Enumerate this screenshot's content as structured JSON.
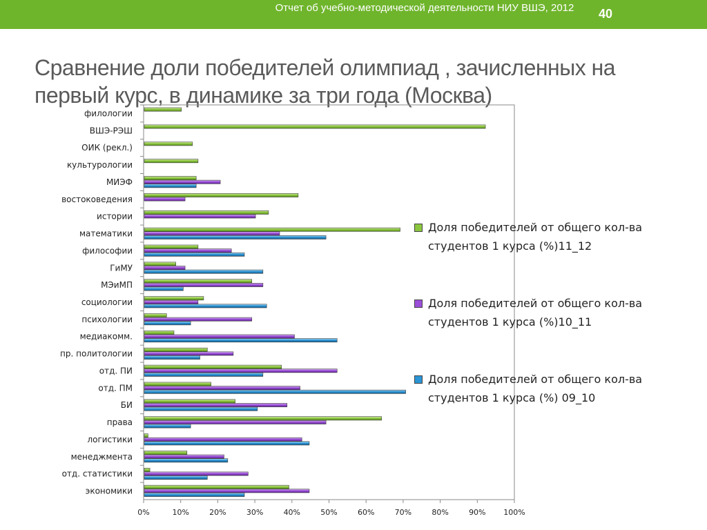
{
  "header": {
    "report_title": "Отчет об учебно-методической деятельности НИУ ВШЭ, 2012",
    "page_number": "40",
    "bar_color": "#6fb52c"
  },
  "slide": {
    "title": "Сравнение доли победителей олимпиад , зачисленных на первый курс, в динамике за три года (Москва)"
  },
  "chart_data": {
    "type": "bar",
    "orientation": "horizontal",
    "title": "",
    "xlabel": "",
    "ylabel": "",
    "xlim": [
      0,
      100
    ],
    "x_ticks": [
      "0%",
      "10%",
      "20%",
      "30%",
      "40%",
      "50%",
      "60%",
      "70%",
      "80%",
      "90%",
      "100%"
    ],
    "grid": false,
    "legend_position": "right",
    "categories": [
      "филологии",
      "ВШЭ-РЭШ",
      "ОИК (рекл.)",
      "культурологии",
      "МИЭФ",
      "востоковедения",
      "истории",
      "математики",
      "философии",
      "ГиМУ",
      "МЭиМП",
      "социологии",
      "психологии",
      "медиакомм.",
      "пр. политологии",
      "отд. ПИ",
      "отд. ПМ",
      "БИ",
      "права",
      "логистики",
      "менеджмента",
      "отд. статистики",
      "экономики"
    ],
    "series": [
      {
        "name": "Доля победителей от общего кол-ва студентов 1 курса (%)11_12",
        "color": "#8cc63f",
        "values": [
          10,
          92,
          13,
          14.5,
          14,
          41.5,
          33.5,
          69,
          14.5,
          8.5,
          29,
          16,
          6,
          8,
          17,
          37,
          18,
          24.5,
          64,
          1,
          11.5,
          1.5,
          39
        ]
      },
      {
        "name": "Доля победителей от общего кол-ва студентов 1 курса (%)10_11",
        "color": "#9b4fd8",
        "values": [
          null,
          null,
          null,
          null,
          20.5,
          11,
          30,
          36.5,
          23.5,
          11,
          32,
          14.5,
          29,
          40.5,
          24,
          52,
          42,
          38.5,
          49,
          42.5,
          21.5,
          28,
          44.5
        ]
      },
      {
        "name": "Доля победителей от общего кол-ва студентов 1 курса (%) 09_10",
        "color": "#2b95d6",
        "values": [
          null,
          null,
          null,
          null,
          14,
          null,
          null,
          49,
          27,
          32,
          10.5,
          33,
          12.5,
          52,
          15,
          32,
          70.5,
          30.5,
          12.5,
          44.5,
          22.5,
          17,
          27
        ]
      }
    ]
  }
}
